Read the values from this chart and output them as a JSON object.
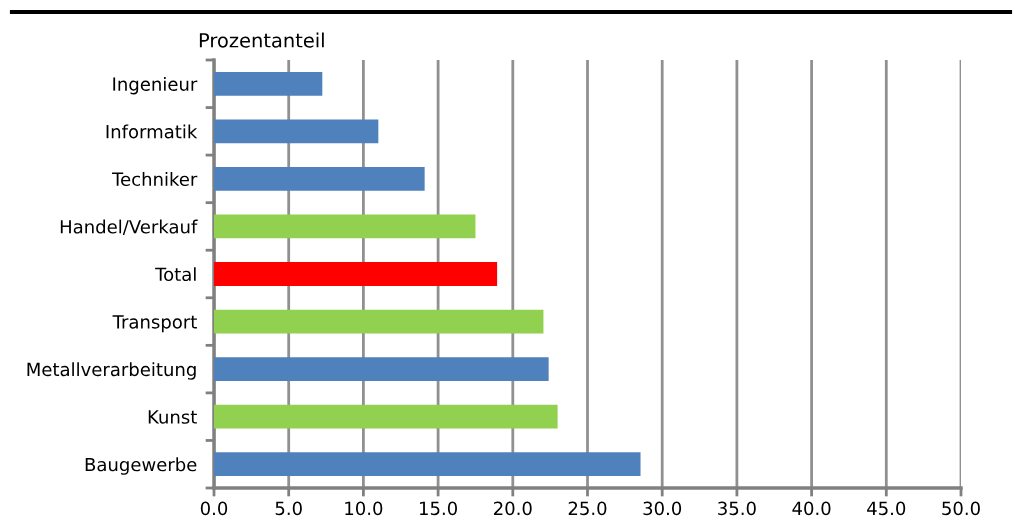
{
  "chart_data": {
    "type": "bar",
    "orientation": "horizontal",
    "ylabel": "Prozentanteil",
    "categories": [
      "Ingenieur",
      "Informatik",
      "Techniker",
      "Handel/Verkauf",
      "Total",
      "Transport",
      "Metallverarbeitung",
      "Kunst",
      "Baugewerbe"
    ],
    "values": [
      7.25,
      11.0,
      14.1,
      17.5,
      18.95,
      22.05,
      22.4,
      23.0,
      28.55
    ],
    "colors": [
      "#4f81bd",
      "#4f81bd",
      "#4f81bd",
      "#92d050",
      "#ff0000",
      "#92d050",
      "#4f81bd",
      "#92d050",
      "#4f81bd"
    ],
    "xlim": [
      0,
      50
    ],
    "xticks": [
      {
        "value": 0,
        "label": "0.0"
      },
      {
        "value": 5,
        "label": "5.0"
      },
      {
        "value": 10,
        "label": "10.0"
      },
      {
        "value": 15,
        "label": "15.0"
      },
      {
        "value": 20,
        "label": "20.0"
      },
      {
        "value": 25,
        "label": "25.0"
      },
      {
        "value": 30,
        "label": "30.0"
      },
      {
        "value": 35,
        "label": "35.0"
      },
      {
        "value": 40,
        "label": "40.0"
      },
      {
        "value": 45,
        "label": "45.0"
      },
      {
        "value": 50,
        "label": "50.0"
      }
    ],
    "grid": "x",
    "legend": false
  }
}
